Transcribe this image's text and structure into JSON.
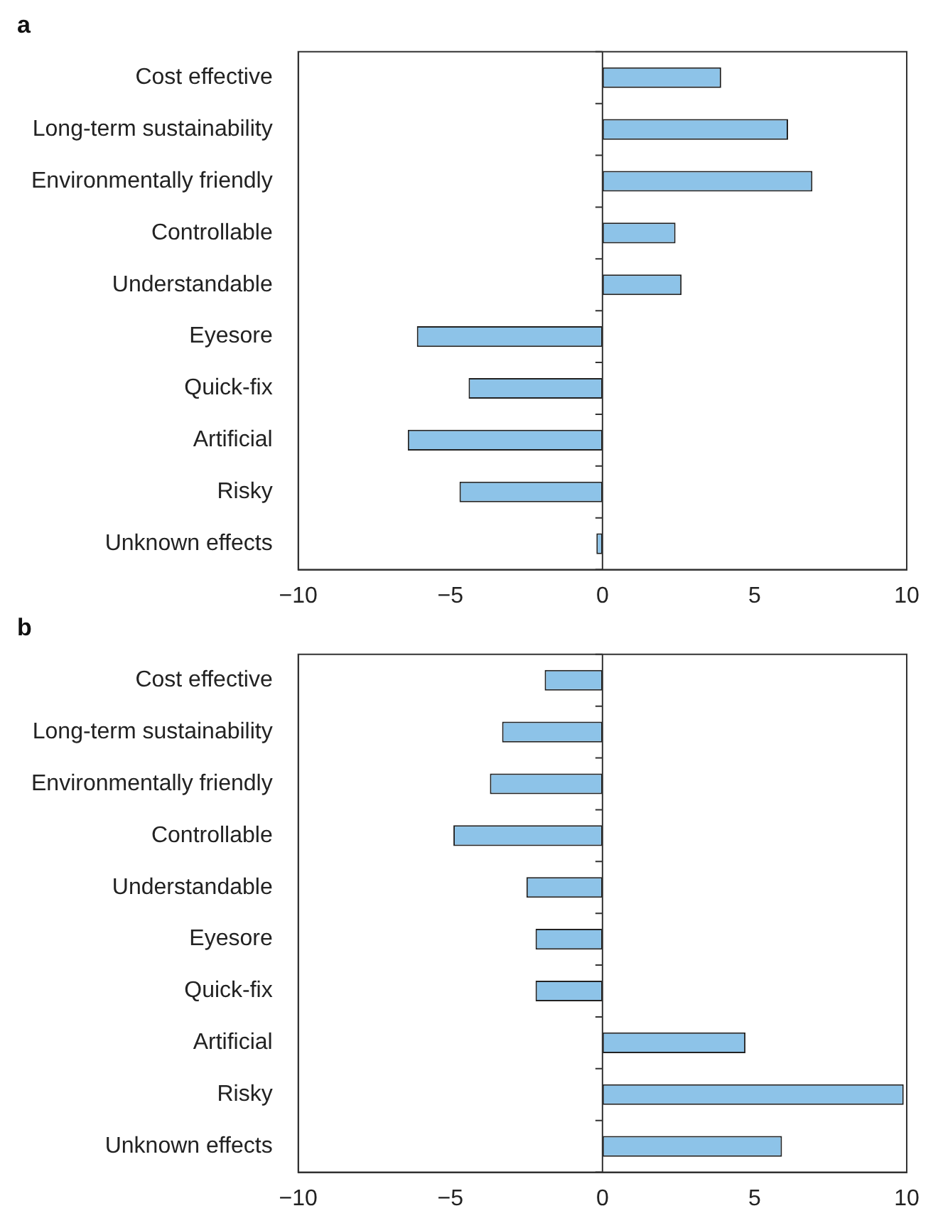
{
  "chart_data": [
    {
      "type": "bar",
      "title": "a",
      "orientation": "horizontal",
      "categories": [
        "Cost effective",
        "Long-term sustainability",
        "Environmentally friendly",
        "Controllable",
        "Understandable",
        "Eyesore",
        "Quick-fix",
        "Artificial",
        "Risky",
        "Unknown effects"
      ],
      "values": [
        3.9,
        6.1,
        6.9,
        2.4,
        2.6,
        -6.1,
        -4.4,
        -6.4,
        -4.7,
        -0.2
      ],
      "color": "#8dc3e8",
      "ref_lines": [
        {
          "axis": "x",
          "value": 0
        }
      ],
      "xlim": [
        -10,
        10
      ],
      "xticks": [
        -10,
        -5,
        0,
        5,
        10
      ],
      "grid": false,
      "legend": false
    },
    {
      "type": "bar",
      "title": "b",
      "orientation": "horizontal",
      "categories": [
        "Cost effective",
        "Long-term sustainability",
        "Environmentally friendly",
        "Controllable",
        "Understandable",
        "Eyesore",
        "Quick-fix",
        "Artificial",
        "Risky",
        "Unknown effects"
      ],
      "values": [
        -1.9,
        -3.3,
        -3.7,
        -4.9,
        -2.5,
        -2.2,
        -2.2,
        4.7,
        9.9,
        5.9
      ],
      "color": "#8dc3e8",
      "ref_lines": [
        {
          "axis": "x",
          "value": 0
        }
      ],
      "xlim": [
        -10,
        10
      ],
      "xticks": [
        -10,
        -5,
        0,
        5,
        10
      ],
      "grid": false,
      "legend": false
    }
  ]
}
